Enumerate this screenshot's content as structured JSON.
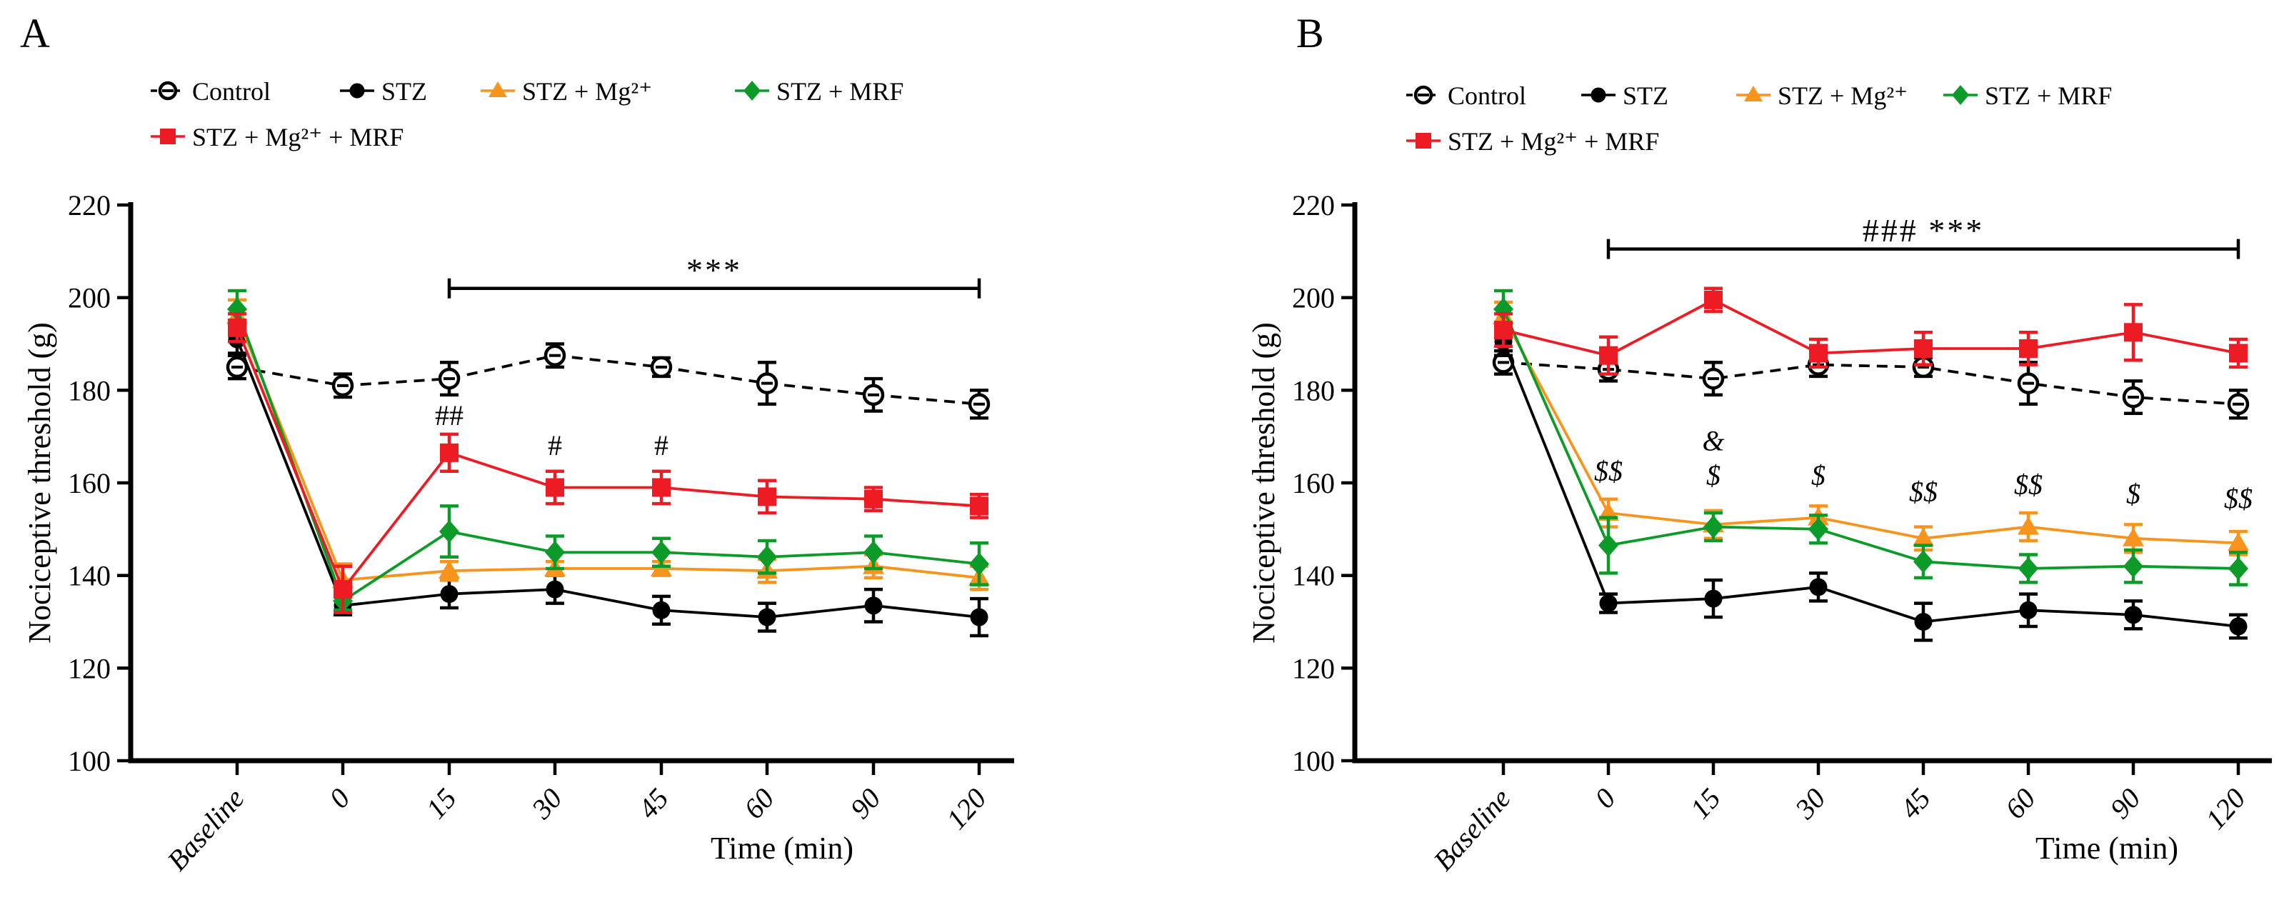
{
  "chart_data": [
    {
      "type": "line",
      "panel_label": "A",
      "ylabel": "Nociceptive threshold (g)",
      "xlabel": "Time (min)",
      "ylim": [
        100,
        220
      ],
      "y_ticks": [
        100,
        120,
        140,
        160,
        180,
        200,
        220
      ],
      "categories": [
        "Baseline",
        "0",
        "15",
        "30",
        "45",
        "60",
        "90",
        "120"
      ],
      "grid": false,
      "legend_position": "top",
      "series": [
        {
          "name": "Control",
          "marker": "open-circle",
          "line_style": "dashed",
          "color": "#000000",
          "values": [
            185,
            181,
            182.5,
            187.5,
            185,
            181.5,
            179,
            177
          ],
          "errors": [
            2.5,
            2.5,
            3.5,
            2.5,
            2,
            4.5,
            3.5,
            3
          ]
        },
        {
          "name": "STZ",
          "marker": "circle",
          "line_style": "solid",
          "color": "#000000",
          "values": [
            191,
            133.5,
            136,
            137,
            132.5,
            131,
            133.5,
            131
          ],
          "errors": [
            3,
            2,
            3,
            3,
            3,
            3,
            3.5,
            4
          ]
        },
        {
          "name": "STZ + Mg²⁺",
          "marker": "triangle",
          "line_style": "solid",
          "color": "#F7941D",
          "values": [
            196,
            139,
            141,
            141.5,
            141.5,
            141,
            142,
            139.5
          ],
          "errors": [
            3.5,
            3.5,
            2,
            1.5,
            1.5,
            2.5,
            2.5,
            2.5
          ]
        },
        {
          "name": "STZ + MRF",
          "marker": "diamond",
          "line_style": "solid",
          "color": "#0C9B28",
          "values": [
            197.5,
            134.5,
            149.5,
            145,
            145,
            144,
            145,
            142.5
          ],
          "errors": [
            4,
            2,
            5.5,
            3.5,
            3,
            3.5,
            3.5,
            4.5
          ]
        },
        {
          "name": "STZ + Mg²⁺ + MRF",
          "marker": "square",
          "line_style": "solid",
          "color": "#ED1C24",
          "values": [
            193.5,
            137,
            166.5,
            159,
            159,
            157,
            156.5,
            155
          ],
          "errors": [
            3,
            5,
            4,
            3.5,
            3.5,
            3.5,
            2.5,
            2.5
          ]
        }
      ],
      "significance_bracket": {
        "from_category": "15",
        "to_category": "120",
        "y": 202,
        "label": "***"
      },
      "annotations": [
        {
          "category": "15",
          "text": "##",
          "y": 172.5
        },
        {
          "category": "30",
          "text": "#",
          "y": 166
        },
        {
          "category": "45",
          "text": "#",
          "y": 166
        }
      ]
    },
    {
      "type": "line",
      "panel_label": "B",
      "ylabel": "Nociceptive threshold (g)",
      "xlabel": "Time (min)",
      "ylim": [
        100,
        220
      ],
      "y_ticks": [
        100,
        120,
        140,
        160,
        180,
        200,
        220
      ],
      "categories": [
        "Baseline",
        "0",
        "15",
        "30",
        "45",
        "60",
        "90",
        "120"
      ],
      "grid": false,
      "legend_position": "top",
      "series": [
        {
          "name": "Control",
          "marker": "open-circle",
          "line_style": "dashed",
          "color": "#000000",
          "values": [
            186,
            184.5,
            182.5,
            185.5,
            185,
            181.5,
            178.5,
            177
          ],
          "errors": [
            2.5,
            2.5,
            3.5,
            2.5,
            2,
            4.5,
            3.5,
            3
          ]
        },
        {
          "name": "STZ",
          "marker": "circle",
          "line_style": "solid",
          "color": "#000000",
          "values": [
            190.5,
            134,
            135,
            137.5,
            130,
            132.5,
            131.5,
            129
          ],
          "errors": [
            3,
            2,
            4,
            3,
            4,
            3.5,
            3,
            2.5
          ]
        },
        {
          "name": "STZ + Mg²⁺",
          "marker": "triangle",
          "line_style": "solid",
          "color": "#F7941D",
          "values": [
            196,
            153.5,
            151,
            152.5,
            148,
            150.5,
            148,
            147
          ],
          "errors": [
            3,
            3,
            3,
            2.5,
            2.5,
            3,
            3,
            2.5
          ]
        },
        {
          "name": "STZ + MRF",
          "marker": "diamond",
          "line_style": "solid",
          "color": "#0C9B28",
          "values": [
            197.5,
            146.5,
            150.5,
            150,
            143,
            141.5,
            142,
            141.5
          ],
          "errors": [
            4,
            6,
            3,
            3,
            3.5,
            3,
            3.5,
            3.5
          ]
        },
        {
          "name": "STZ + Mg²⁺ + MRF",
          "marker": "square",
          "line_style": "solid",
          "color": "#ED1C24",
          "values": [
            193,
            187.5,
            199.5,
            188,
            189,
            189,
            192.5,
            188
          ],
          "errors": [
            3.5,
            4,
            2.5,
            3,
            3.5,
            3.5,
            6,
            3
          ]
        }
      ],
      "significance_bracket": {
        "from_category": "0",
        "to_category": "120",
        "y": 210.5,
        "label": "###  ***"
      },
      "annotations": [
        {
          "category": "0",
          "text": "$$",
          "y": 160.5
        },
        {
          "category": "15",
          "text": "&",
          "y": 167
        },
        {
          "category": "15",
          "text": "$",
          "y": 159.5
        },
        {
          "category": "30",
          "text": "$",
          "y": 159.5
        },
        {
          "category": "45",
          "text": "$$",
          "y": 156
        },
        {
          "category": "60",
          "text": "$$",
          "y": 157.5
        },
        {
          "category": "90",
          "text": "$",
          "y": 155.5
        },
        {
          "category": "120",
          "text": "$$",
          "y": 154.5
        }
      ]
    }
  ]
}
